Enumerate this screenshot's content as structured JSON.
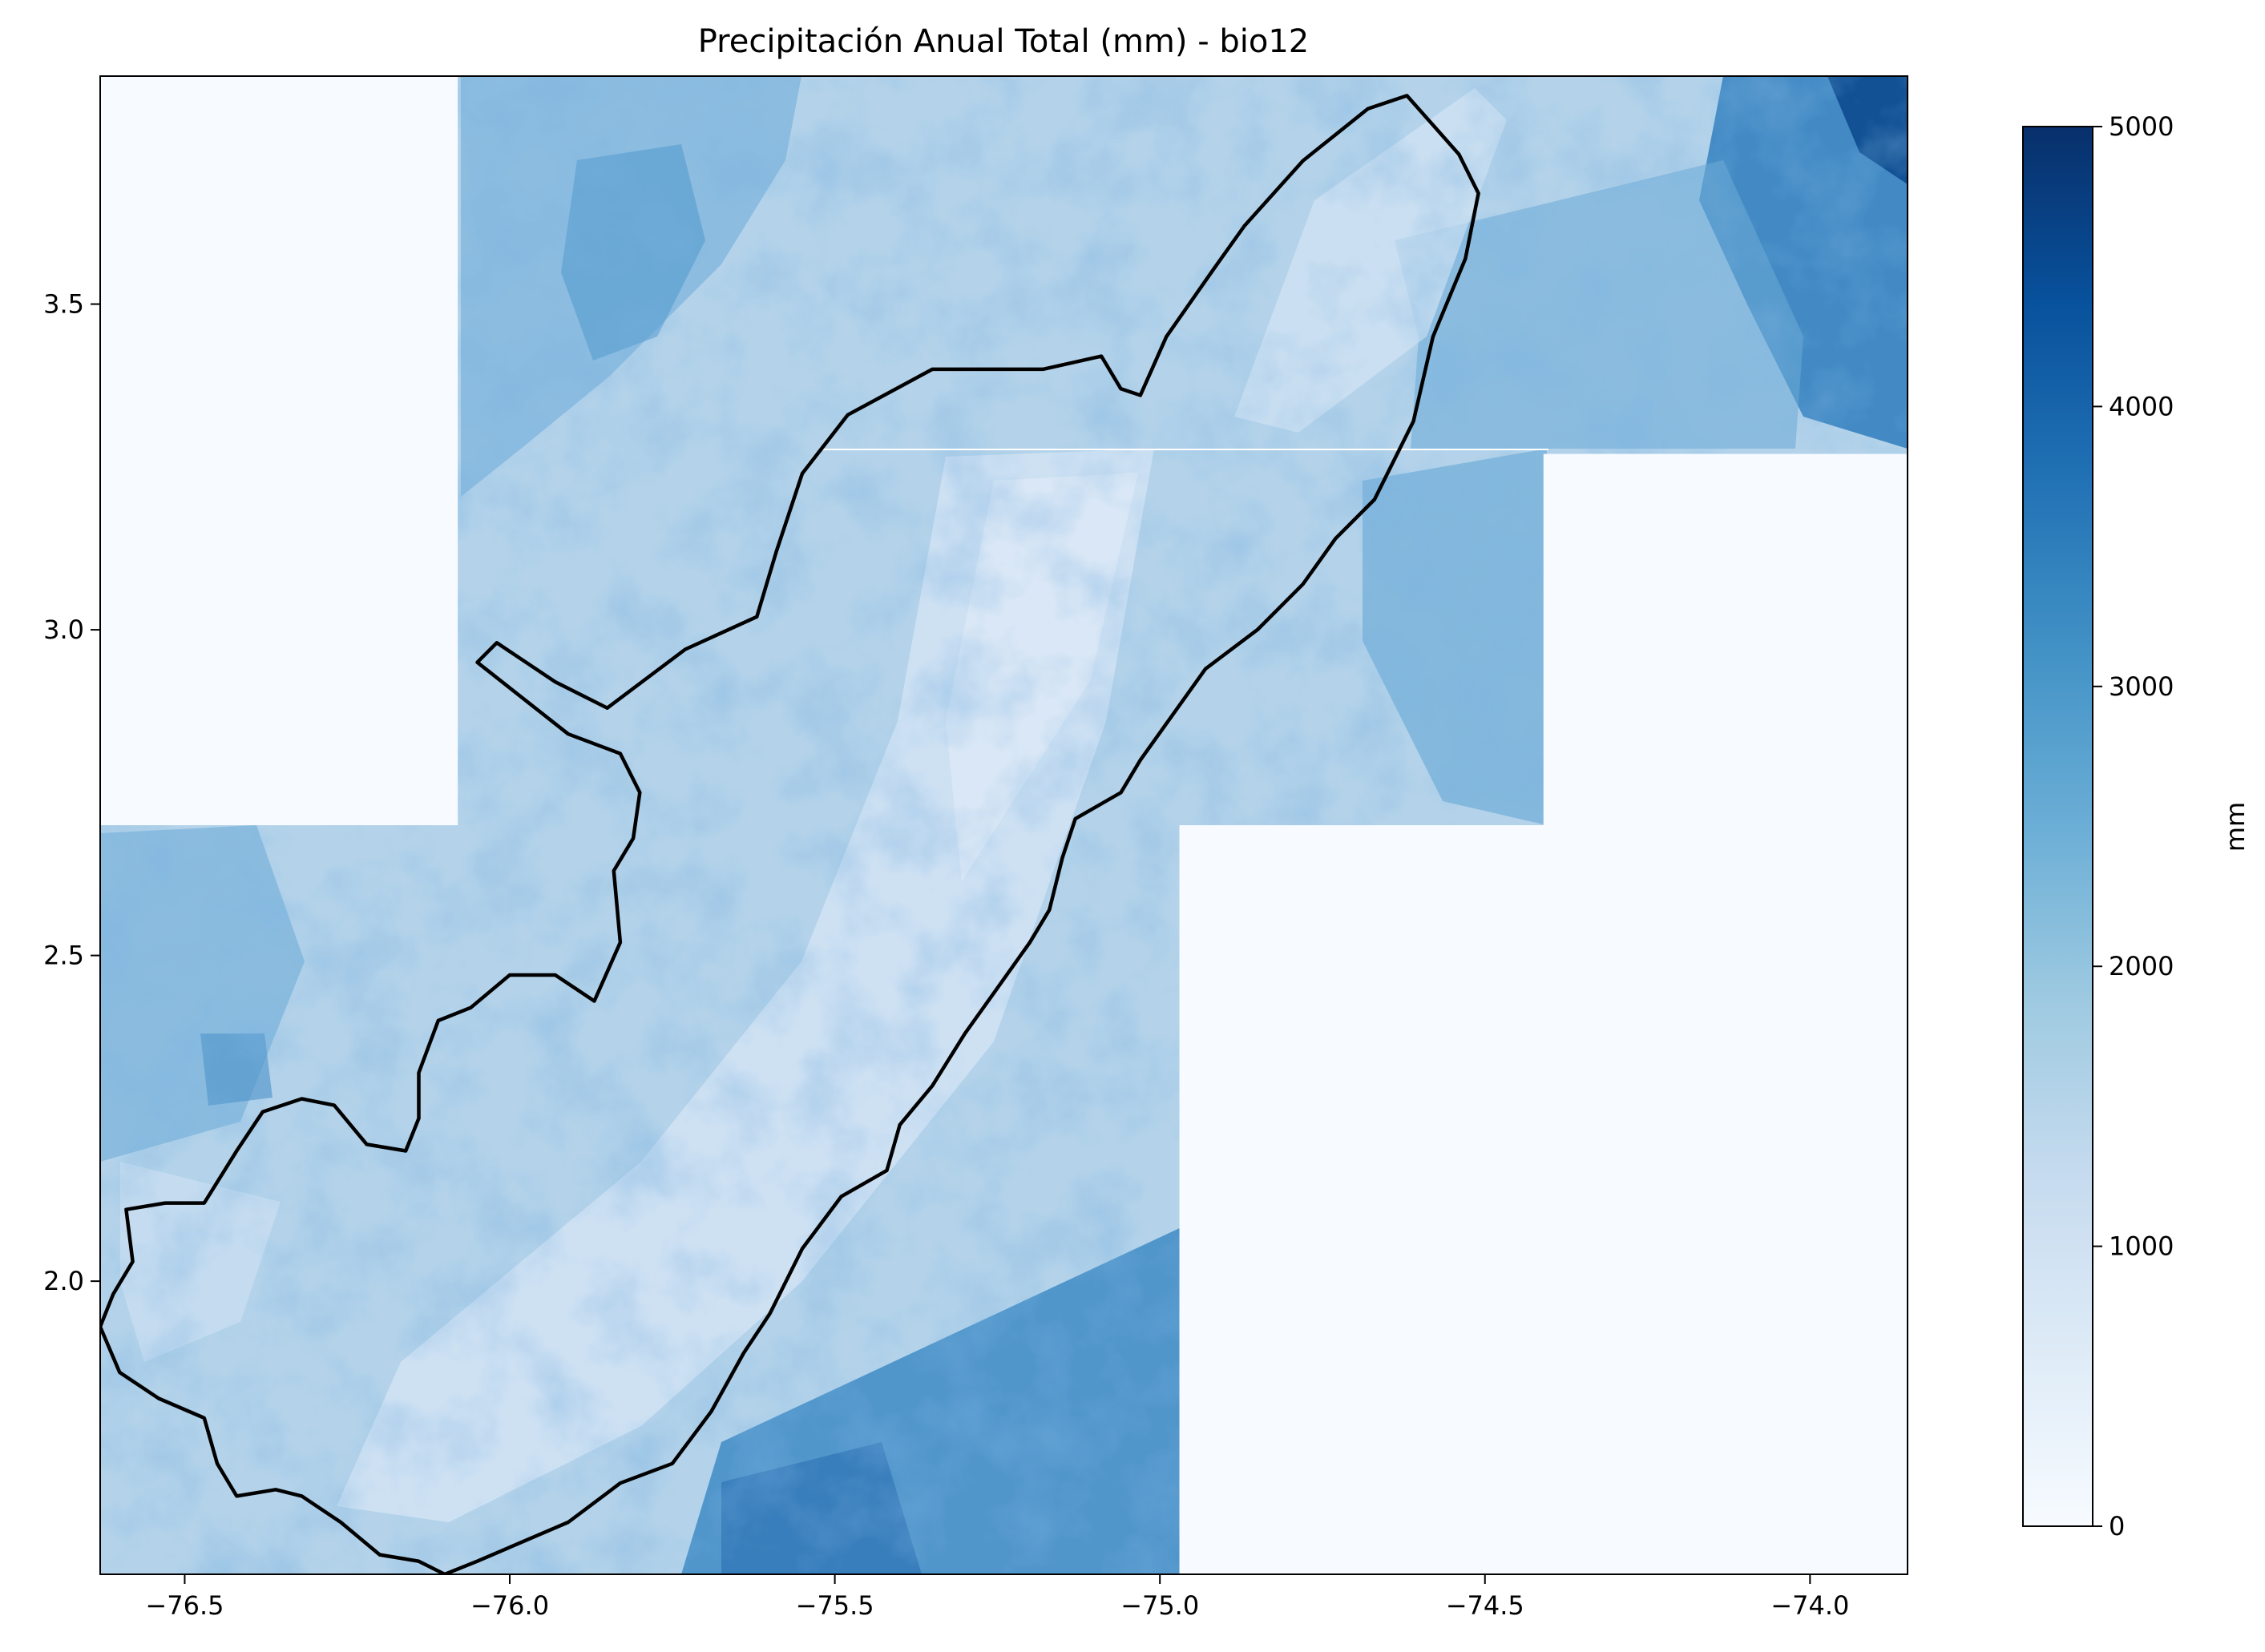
{
  "title": "Precipitación Anual Total (mm) - bio12",
  "x_ticks": [
    "−76.5",
    "−76.0",
    "−75.5",
    "−75.0",
    "−74.5",
    "−74.0"
  ],
  "y_ticks": [
    "3.5",
    "3.0",
    "2.5",
    "2.0"
  ],
  "colorbar": {
    "label": "mm",
    "ticks": [
      "0",
      "1000",
      "2000",
      "3000",
      "4000",
      "5000"
    ],
    "colormap": [
      "#f7fbff",
      "#deebf7",
      "#c6dbef",
      "#9ecae1",
      "#6baed6",
      "#4292c6",
      "#2171b5",
      "#08519c",
      "#08306b"
    ]
  },
  "chart_data": {
    "type": "heatmap",
    "title": "Precipitación Anual Total (mm) - bio12",
    "xlabel": "",
    "ylabel": "",
    "xlim": [
      -76.63,
      -73.85
    ],
    "ylim": [
      1.55,
      3.85
    ],
    "value_range": [
      0,
      5000
    ],
    "colorbar_label": "mm",
    "x_tick_values": [
      -76.5,
      -76.0,
      -75.5,
      -75.0,
      -74.5,
      -74.0
    ],
    "y_tick_values": [
      3.5,
      3.0,
      2.5,
      2.0
    ],
    "colorbar_tick_values": [
      0,
      1000,
      2000,
      3000,
      4000,
      5000
    ],
    "no_data_regions": [
      {
        "lon": [
          -76.63,
          -76.08
        ],
        "lat": [
          2.7,
          3.85
        ]
      },
      {
        "lon": [
          -74.97,
          -73.85
        ],
        "lat": [
          1.55,
          2.7
        ]
      },
      {
        "lon": [
          -74.41,
          -73.85
        ],
        "lat": [
          2.7,
          3.27
        ]
      }
    ],
    "boundary_outline": [
      [
        -74.54,
        3.73
      ],
      [
        -74.62,
        3.82
      ],
      [
        -74.68,
        3.8
      ],
      [
        -74.78,
        3.72
      ],
      [
        -74.87,
        3.62
      ],
      [
        -74.92,
        3.55
      ],
      [
        -74.99,
        3.45
      ],
      [
        -75.03,
        3.36
      ],
      [
        -75.06,
        3.37
      ],
      [
        -75.09,
        3.42
      ],
      [
        -75.18,
        3.4
      ],
      [
        -75.27,
        3.4
      ],
      [
        -75.35,
        3.4
      ],
      [
        -75.48,
        3.33
      ],
      [
        -75.55,
        3.24
      ],
      [
        -75.59,
        3.12
      ],
      [
        -75.62,
        3.02
      ],
      [
        -75.73,
        2.97
      ],
      [
        -75.85,
        2.88
      ],
      [
        -75.93,
        2.92
      ],
      [
        -76.02,
        2.98
      ],
      [
        -76.05,
        2.95
      ],
      [
        -75.91,
        2.84
      ],
      [
        -75.83,
        2.81
      ],
      [
        -75.8,
        2.75
      ],
      [
        -75.81,
        2.68
      ],
      [
        -75.84,
        2.63
      ],
      [
        -75.83,
        2.52
      ],
      [
        -75.87,
        2.43
      ],
      [
        -75.93,
        2.47
      ],
      [
        -76.0,
        2.47
      ],
      [
        -76.06,
        2.42
      ],
      [
        -76.11,
        2.4
      ],
      [
        -76.14,
        2.32
      ],
      [
        -76.14,
        2.25
      ],
      [
        -76.16,
        2.2
      ],
      [
        -76.22,
        2.21
      ],
      [
        -76.27,
        2.27
      ],
      [
        -76.32,
        2.28
      ],
      [
        -76.38,
        2.26
      ],
      [
        -76.42,
        2.2
      ],
      [
        -76.47,
        2.12
      ],
      [
        -76.53,
        2.12
      ],
      [
        -76.59,
        2.11
      ],
      [
        -76.58,
        2.03
      ],
      [
        -76.61,
        1.98
      ],
      [
        -76.63,
        1.93
      ],
      [
        -76.6,
        1.86
      ],
      [
        -76.54,
        1.82
      ],
      [
        -76.47,
        1.79
      ],
      [
        -76.45,
        1.72
      ],
      [
        -76.42,
        1.67
      ],
      [
        -76.36,
        1.68
      ],
      [
        -76.32,
        1.67
      ],
      [
        -76.26,
        1.63
      ],
      [
        -76.2,
        1.58
      ],
      [
        -76.14,
        1.57
      ],
      [
        -76.1,
        1.55
      ],
      [
        -76.05,
        1.57
      ],
      [
        -75.98,
        1.6
      ],
      [
        -75.91,
        1.63
      ],
      [
        -75.83,
        1.69
      ],
      [
        -75.75,
        1.72
      ],
      [
        -75.69,
        1.8
      ],
      [
        -75.64,
        1.89
      ],
      [
        -75.6,
        1.95
      ],
      [
        -75.55,
        2.05
      ],
      [
        -75.49,
        2.13
      ],
      [
        -75.42,
        2.17
      ],
      [
        -75.4,
        2.24
      ],
      [
        -75.35,
        2.3
      ],
      [
        -75.3,
        2.38
      ],
      [
        -75.25,
        2.45
      ],
      [
        -75.2,
        2.52
      ],
      [
        -75.17,
        2.57
      ],
      [
        -75.15,
        2.65
      ],
      [
        -75.13,
        2.71
      ],
      [
        -75.06,
        2.75
      ],
      [
        -75.03,
        2.8
      ],
      [
        -74.98,
        2.87
      ],
      [
        -74.93,
        2.94
      ],
      [
        -74.85,
        3.0
      ],
      [
        -74.78,
        3.07
      ],
      [
        -74.73,
        3.14
      ],
      [
        -74.67,
        3.2
      ],
      [
        -74.61,
        3.32
      ],
      [
        -74.58,
        3.45
      ],
      [
        -74.53,
        3.57
      ],
      [
        -74.51,
        3.67
      ],
      [
        -74.54,
        3.73
      ]
    ]
  }
}
